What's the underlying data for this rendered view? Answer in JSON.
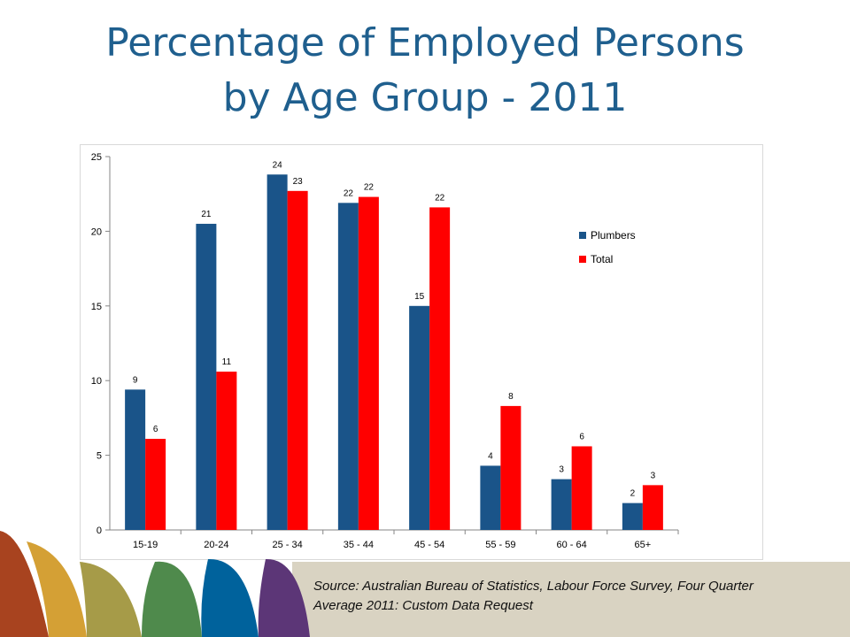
{
  "title": {
    "line1": "Percentage of Employed Persons",
    "line2": "by Age Group -  2011"
  },
  "source": {
    "line1": "Source: Australian Bureau of Statistics, Labour Force Survey, Four Quarter",
    "line2": "Average 2011: Custom Data Request"
  },
  "colors": {
    "title": "#1f5f8e",
    "plumbers": "#1a5489",
    "total": "#ff0000",
    "footer_band": "#d9d3c2",
    "stripes": [
      "#a8431f",
      "#d4a035",
      "#a69b48",
      "#4f8a4c",
      "#00629c",
      "#5c3677"
    ]
  },
  "chart_data": {
    "type": "bar",
    "categories": [
      "15-19",
      "20-24",
      "25 - 34",
      "35 - 44",
      "45 - 54",
      "55 - 59",
      "60 - 64",
      "65+"
    ],
    "series": [
      {
        "name": "Plumbers",
        "values": [
          9.4,
          20.5,
          23.8,
          21.9,
          15.0,
          4.3,
          3.4,
          1.8
        ],
        "labels": [
          "9",
          "21",
          "24",
          "22",
          "15",
          "4",
          "3",
          "2"
        ]
      },
      {
        "name": "Total",
        "values": [
          6.1,
          10.6,
          22.7,
          22.3,
          21.6,
          8.3,
          5.6,
          3.0
        ],
        "labels": [
          "6",
          "11",
          "23",
          "22",
          "22",
          "8",
          "6",
          "3"
        ]
      }
    ],
    "yticks": [
      "0",
      "5",
      "10",
      "15",
      "20",
      "25"
    ],
    "ylim": [
      0,
      25
    ],
    "legend_position": "right",
    "grid": false
  }
}
